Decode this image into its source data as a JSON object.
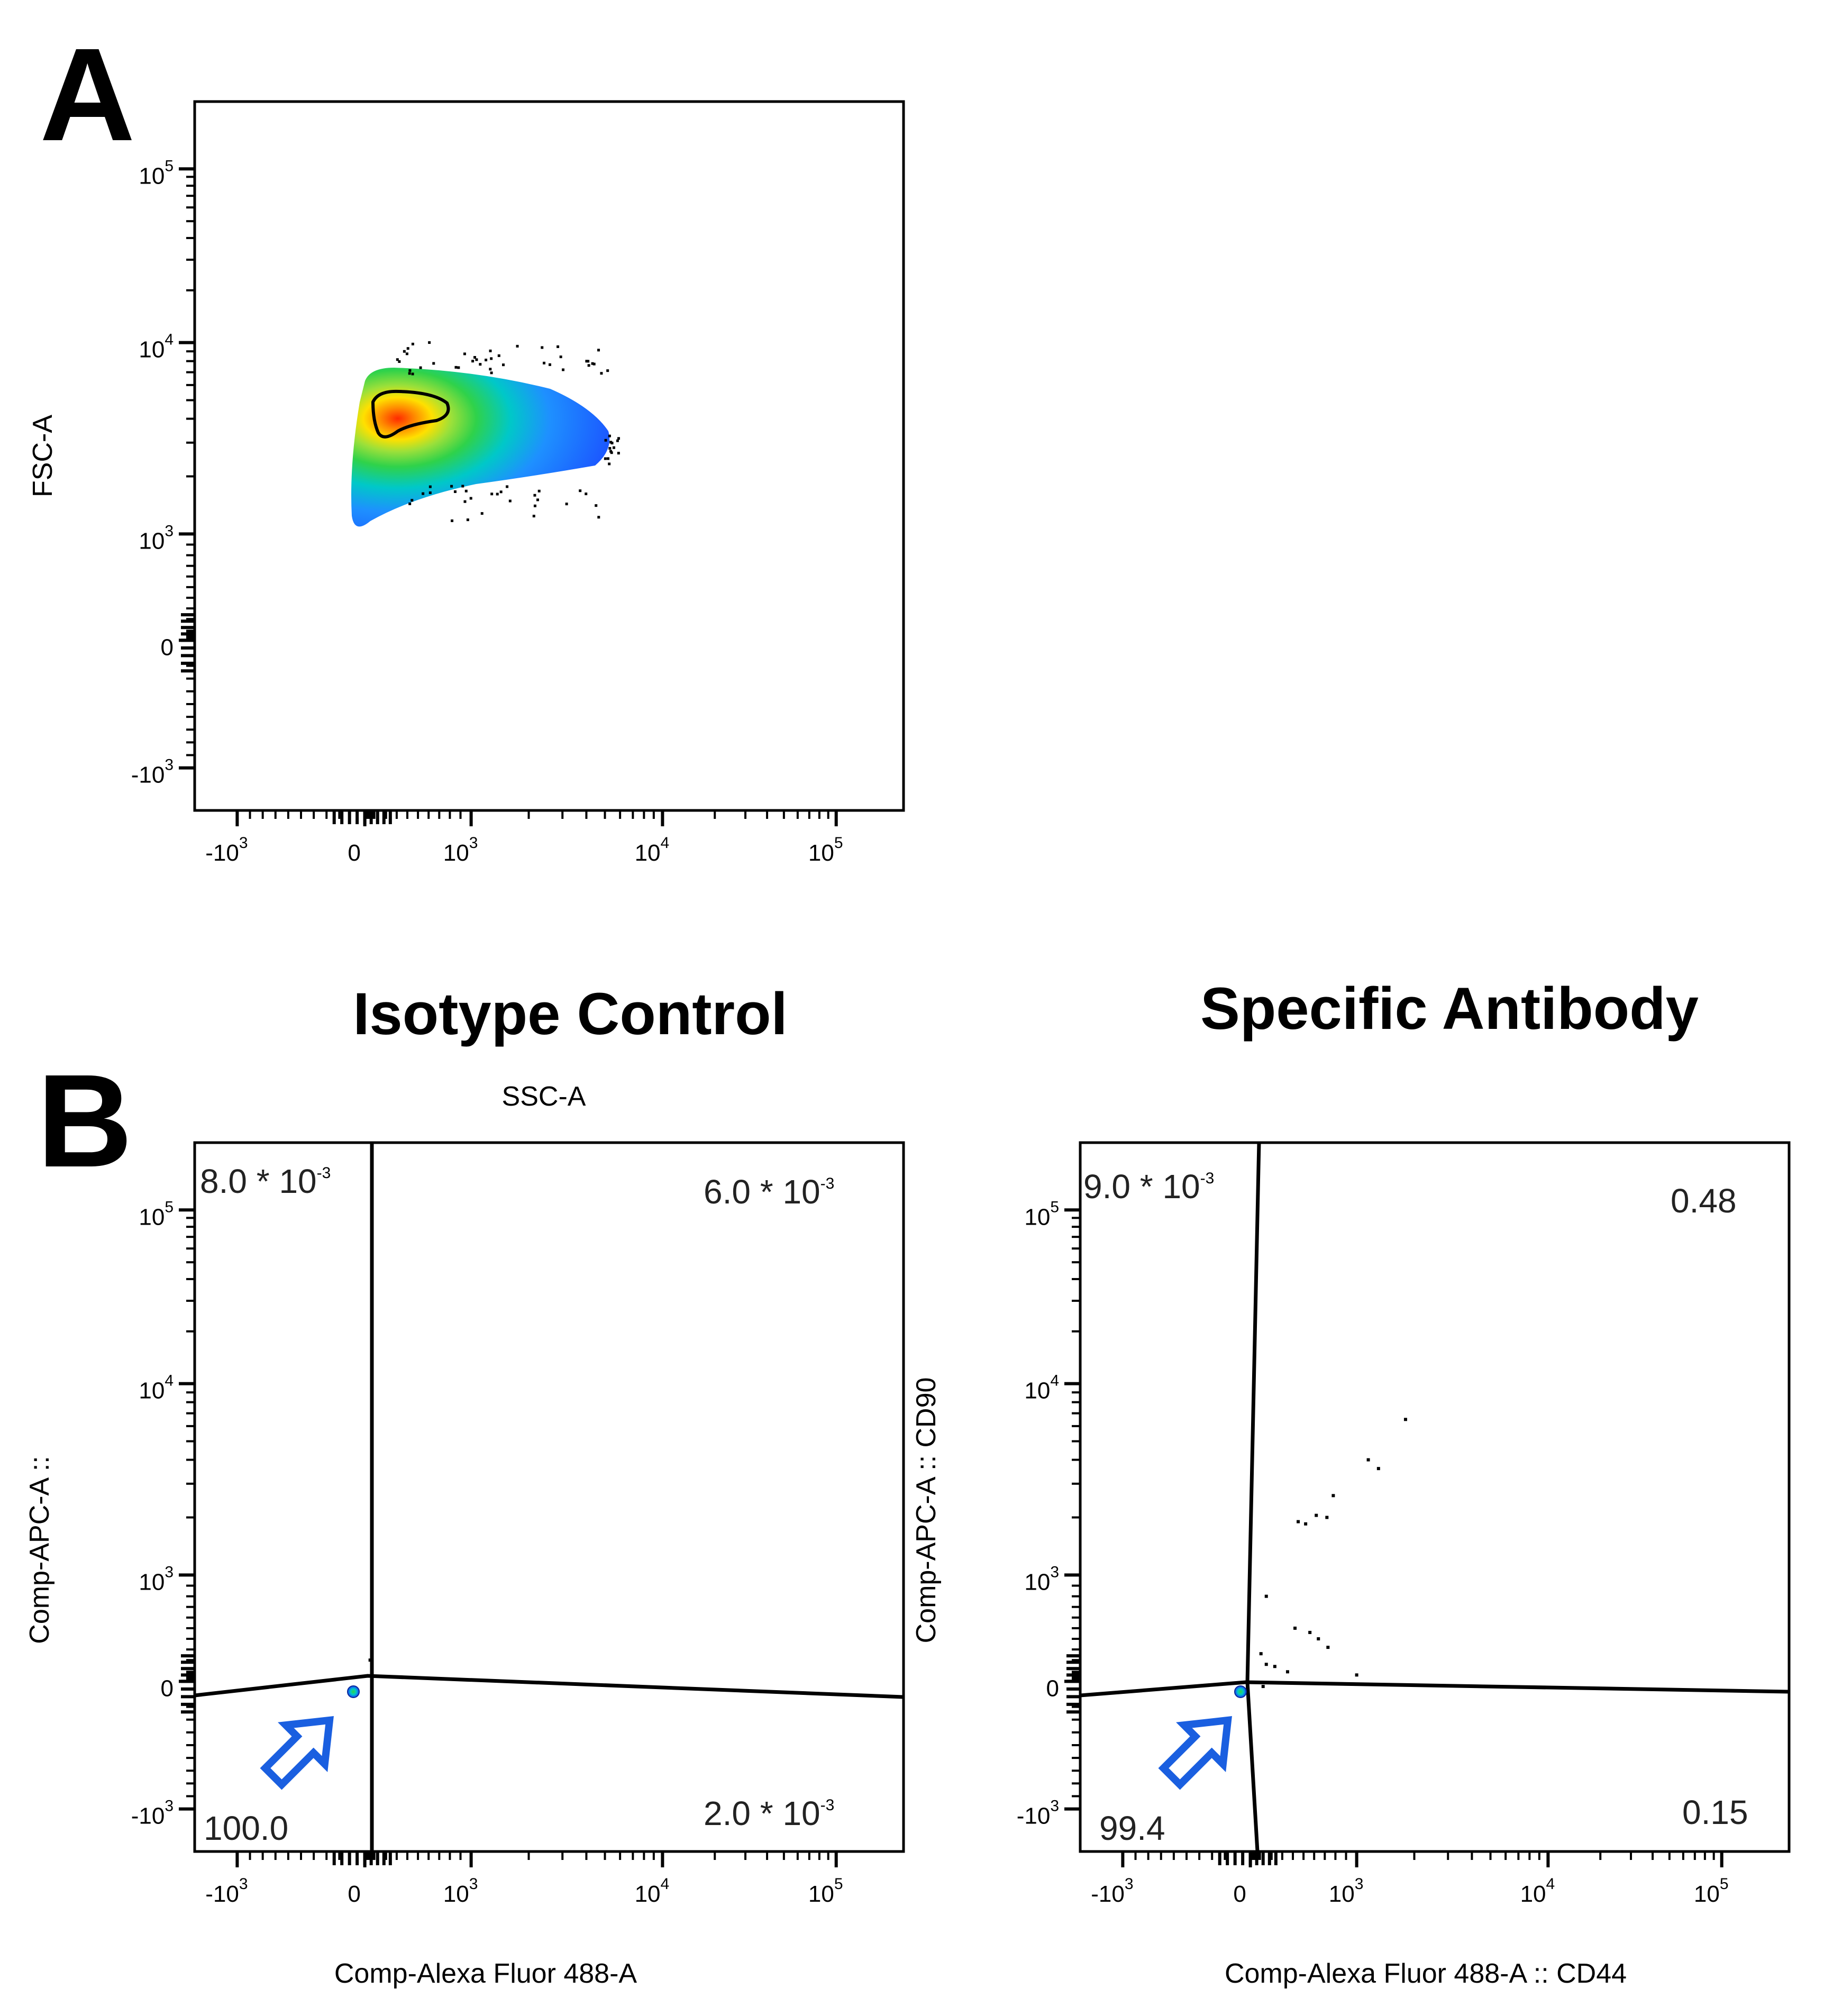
{
  "figure": {
    "panel_a_letter": "A",
    "panel_b_letter": "B",
    "isotype_title": "Isotype Control",
    "specific_title": "Specific Antibody",
    "ssc_label": "SSC-A"
  },
  "chart_data": [
    {
      "id": "A",
      "type": "scatter",
      "subtype": "pseudocolor-density",
      "title": "",
      "xlabel": "",
      "ylabel": "FSC-A",
      "x_ticks": [
        {
          "base": "-10",
          "exp": "3",
          "value": -1000
        },
        {
          "base": "0",
          "exp": "",
          "value": 0
        },
        {
          "base": "10",
          "exp": "3",
          "value": 1000
        },
        {
          "base": "10",
          "exp": "4",
          "value": 10000
        },
        {
          "base": "10",
          "exp": "5",
          "value": 100000
        }
      ],
      "y_ticks": [
        {
          "base": "-10",
          "exp": "3",
          "value": -1000
        },
        {
          "base": "0",
          "exp": "",
          "value": 0
        },
        {
          "base": "10",
          "exp": "3",
          "value": 1000
        },
        {
          "base": "10",
          "exp": "4",
          "value": 10000
        },
        {
          "base": "10",
          "exp": "5",
          "value": 100000
        }
      ],
      "xlim": [
        -1500,
        250000
      ],
      "ylim": [
        -1500,
        250000
      ],
      "population": {
        "x_range": [
          100,
          5000
        ],
        "y_range": [
          1000,
          6500
        ],
        "peak": [
          200,
          4200
        ]
      },
      "colors": {
        "low": "#1a3cff",
        "mid": "#00c8c8",
        "mid2": "#2fd24a",
        "high": "#ffe000",
        "peak": "#ff2a00"
      }
    },
    {
      "id": "B-isotype",
      "type": "scatter",
      "subtype": "quadrant-gate",
      "title": "Isotype Control",
      "xlabel": "Comp-Alexa Fluor 488-A",
      "ylabel": "Comp-APC-A ::",
      "x_ticks": [
        {
          "base": "-10",
          "exp": "3",
          "value": -1000
        },
        {
          "base": "0",
          "exp": "",
          "value": 0
        },
        {
          "base": "10",
          "exp": "3",
          "value": 1000
        },
        {
          "base": "10",
          "exp": "4",
          "value": 10000
        },
        {
          "base": "10",
          "exp": "5",
          "value": 100000
        }
      ],
      "y_ticks": [
        {
          "base": "-10",
          "exp": "3",
          "value": -1000
        },
        {
          "base": "0",
          "exp": "",
          "value": 0
        },
        {
          "base": "10",
          "exp": "3",
          "value": 1000
        },
        {
          "base": "10",
          "exp": "4",
          "value": 10000
        },
        {
          "base": "10",
          "exp": "5",
          "value": 100000
        }
      ],
      "xlim": [
        -1500,
        250000
      ],
      "ylim": [
        -1500,
        250000
      ],
      "quadrants": {
        "upper_left": "8.0 * 10",
        "upper_left_exp": "-3",
        "upper_right": "6.0 * 10",
        "upper_right_exp": "-3",
        "lower_left": "100.0",
        "lower_right": "2.0 * 10",
        "lower_right_exp": "-3"
      },
      "events": [
        {
          "x": 50,
          "y": 200
        }
      ],
      "arrow_color": "#1a5fe0"
    },
    {
      "id": "B-specific",
      "type": "scatter",
      "subtype": "quadrant-gate",
      "title": "Specific Antibody",
      "xlabel": "Comp-Alexa Fluor 488-A :: CD44",
      "ylabel": "Comp-APC-A :: CD90",
      "x_ticks": [
        {
          "base": "-10",
          "exp": "3",
          "value": -1000
        },
        {
          "base": "0",
          "exp": "",
          "value": 0
        },
        {
          "base": "10",
          "exp": "3",
          "value": 1000
        },
        {
          "base": "10",
          "exp": "4",
          "value": 10000
        },
        {
          "base": "10",
          "exp": "5",
          "value": 100000
        }
      ],
      "y_ticks": [
        {
          "base": "-10",
          "exp": "3",
          "value": -1000
        },
        {
          "base": "0",
          "exp": "",
          "value": 0
        },
        {
          "base": "10",
          "exp": "3",
          "value": 1000
        },
        {
          "base": "10",
          "exp": "4",
          "value": 10000
        },
        {
          "base": "10",
          "exp": "5",
          "value": 100000
        }
      ],
      "xlim": [
        -1500,
        250000
      ],
      "ylim": [
        -1500,
        250000
      ],
      "quadrants": {
        "upper_left": "9.0 * 10",
        "upper_left_exp": "-3",
        "upper_right": "0.48",
        "lower_left": "99.4",
        "lower_right": "0.15"
      },
      "events": [
        {
          "x": 1800,
          "y": 6500
        },
        {
          "x": 1150,
          "y": 4000
        },
        {
          "x": 1300,
          "y": 3600
        },
        {
          "x": 780,
          "y": 2600
        },
        {
          "x": 720,
          "y": 2000
        },
        {
          "x": 620,
          "y": 2050
        },
        {
          "x": 520,
          "y": 1850
        },
        {
          "x": 450,
          "y": 1900
        },
        {
          "x": 150,
          "y": 800
        },
        {
          "x": 420,
          "y": 500
        },
        {
          "x": 560,
          "y": 460
        },
        {
          "x": 730,
          "y": 320
        },
        {
          "x": 640,
          "y": 400
        },
        {
          "x": 100,
          "y": 260
        },
        {
          "x": 150,
          "y": 160
        },
        {
          "x": 230,
          "y": 140
        },
        {
          "x": 350,
          "y": 90
        },
        {
          "x": 1000,
          "y": 60
        },
        {
          "x": 120,
          "y": -40
        }
      ],
      "arrow_color": "#1a5fe0"
    }
  ]
}
